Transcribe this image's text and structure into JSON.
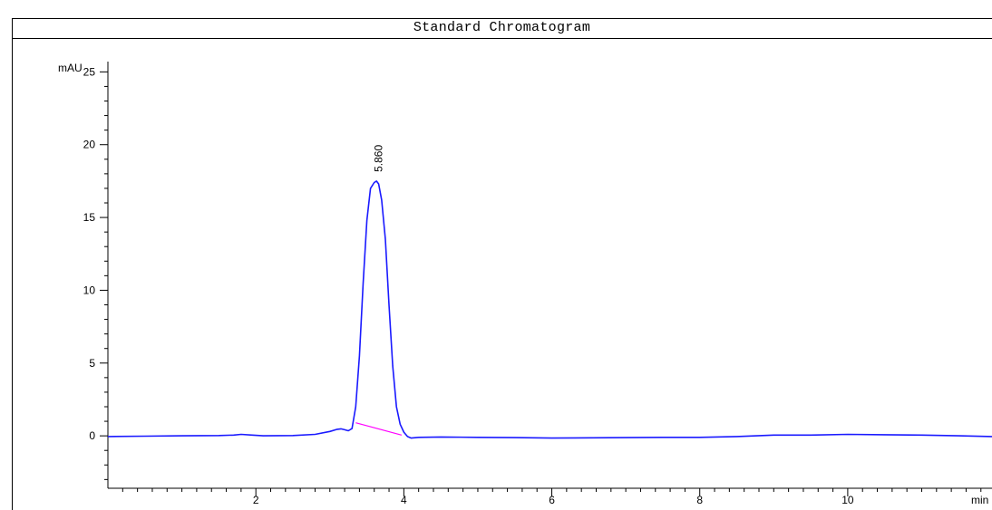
{
  "chart_data": {
    "type": "line",
    "title": "Standard Chromatogram",
    "ylabel": "mAU",
    "xlabel": "min",
    "xlim": [
      0,
      11.95
    ],
    "ylim": [
      -3.6,
      27.2
    ],
    "x_ticks": [
      2,
      4,
      6,
      8,
      10
    ],
    "y_ticks": [
      0,
      5,
      10,
      15,
      20,
      25
    ],
    "x_minor_step": 0.2,
    "y_minor_step": 1,
    "colors": {
      "signal": "#1a1aff",
      "baseline": "#ff00ff",
      "axis": "#000000"
    },
    "series": [
      {
        "x": [
          0.0,
          0.5,
          1.0,
          1.5,
          1.7,
          1.8,
          1.95,
          2.1,
          2.5,
          2.8,
          3.0,
          3.1,
          3.15,
          3.2,
          3.25,
          3.3,
          3.35,
          3.4,
          3.45,
          3.5,
          3.55,
          3.6,
          3.63,
          3.66,
          3.7,
          3.75,
          3.8,
          3.85,
          3.9,
          3.95,
          4.0,
          4.05,
          4.1,
          4.2,
          4.5,
          5.0,
          5.5,
          6.0,
          7.0,
          7.5,
          8.0,
          8.5,
          9.0,
          9.5,
          10.0,
          10.5,
          11.0,
          11.5,
          11.95
        ],
        "y": [
          -0.05,
          -0.02,
          0.0,
          0.02,
          0.05,
          0.1,
          0.05,
          0.0,
          0.02,
          0.1,
          0.3,
          0.45,
          0.48,
          0.42,
          0.35,
          0.5,
          2.0,
          5.5,
          10.5,
          14.8,
          17.0,
          17.4,
          17.5,
          17.3,
          16.2,
          13.5,
          9.0,
          4.8,
          2.0,
          0.8,
          0.25,
          -0.05,
          -0.15,
          -0.1,
          -0.08,
          -0.1,
          -0.12,
          -0.15,
          -0.12,
          -0.1,
          -0.1,
          -0.05,
          0.05,
          0.05,
          0.1,
          0.08,
          0.05,
          0.0,
          -0.05
        ]
      }
    ],
    "baseline_segment": {
      "x": [
        3.35,
        3.97
      ],
      "y": [
        0.9,
        0.05
      ]
    },
    "annotations": [
      {
        "text": "5.860",
        "x": 3.66,
        "y": 17.5
      }
    ]
  }
}
